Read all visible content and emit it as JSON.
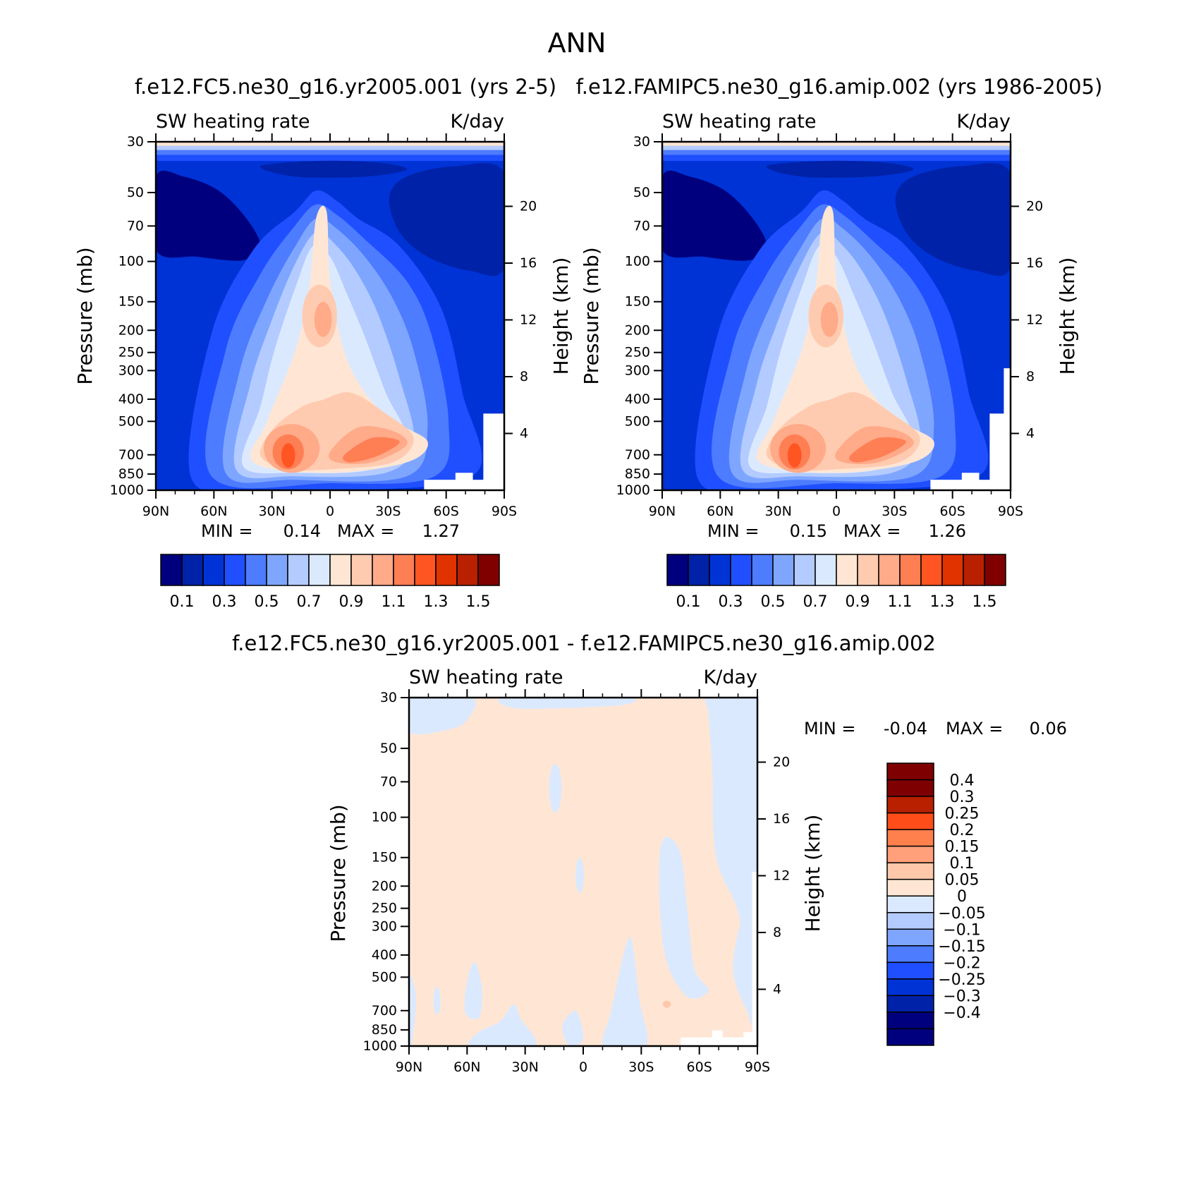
{
  "figure": {
    "title": "ANN"
  },
  "chart_data": [
    {
      "type": "contour",
      "title": "f.e12.FC5.ne30_g16.yr2005.001 (yrs 2-5)",
      "left_subtitle": "SW heating rate",
      "right_subtitle": "K/day",
      "xlabel": "",
      "ylabel": "Pressure (mb)",
      "ylabel_right": "Height (km)",
      "x_ticks": [
        "90N",
        "60N",
        "30N",
        "0",
        "30S",
        "60S",
        "90S"
      ],
      "y_ticks": [
        "30",
        "50",
        "70",
        "100",
        "150",
        "200",
        "250",
        "300",
        "400",
        "500",
        "700",
        "850",
        "1000"
      ],
      "y_ticks_right": [
        "20",
        "16",
        "12",
        "8",
        "4"
      ],
      "xlim": [
        -90,
        90
      ],
      "ylim": [
        1000,
        30
      ],
      "min_label": "MIN =",
      "min_value": "0.14",
      "max_label": "MAX =",
      "max_value": "1.27",
      "colorbar_labels": [
        "0.1",
        "0.3",
        "0.5",
        "0.7",
        "0.9",
        "1.1",
        "1.3",
        "1.5"
      ]
    },
    {
      "type": "contour",
      "title": "f.e12.FAMIPC5.ne30_g16.amip.002 (yrs 1986-2005)",
      "left_subtitle": "SW heating rate",
      "right_subtitle": "K/day",
      "xlabel": "",
      "ylabel": "Pressure (mb)",
      "ylabel_right": "Height (km)",
      "x_ticks": [
        "90N",
        "60N",
        "30N",
        "0",
        "30S",
        "60S",
        "90S"
      ],
      "y_ticks": [
        "30",
        "50",
        "70",
        "100",
        "150",
        "200",
        "250",
        "300",
        "400",
        "500",
        "700",
        "850",
        "1000"
      ],
      "y_ticks_right": [
        "20",
        "16",
        "12",
        "8",
        "4"
      ],
      "xlim": [
        -90,
        90
      ],
      "ylim": [
        1000,
        30
      ],
      "min_label": "MIN =",
      "min_value": "0.15",
      "max_label": "MAX =",
      "max_value": "1.26",
      "colorbar_labels": [
        "0.1",
        "0.3",
        "0.5",
        "0.7",
        "0.9",
        "1.1",
        "1.3",
        "1.5"
      ]
    },
    {
      "type": "contour",
      "title": "f.e12.FC5.ne30_g16.yr2005.001 - f.e12.FAMIPC5.ne30_g16.amip.002",
      "left_subtitle": "SW heating rate",
      "right_subtitle": "K/day",
      "xlabel": "",
      "ylabel": "Pressure (mb)",
      "ylabel_right": "Height (km)",
      "x_ticks": [
        "90N",
        "60N",
        "30N",
        "0",
        "30S",
        "60S",
        "90S"
      ],
      "y_ticks": [
        "30",
        "50",
        "70",
        "100",
        "150",
        "200",
        "250",
        "300",
        "400",
        "500",
        "700",
        "850",
        "1000"
      ],
      "y_ticks_right": [
        "20",
        "16",
        "12",
        "8",
        "4"
      ],
      "xlim": [
        -90,
        90
      ],
      "ylim": [
        1000,
        30
      ],
      "min_label": "MIN =",
      "min_value": "-0.04",
      "max_label": "MAX =",
      "max_value": "0.06",
      "colorbar_labels": [
        "0.4",
        "0.3",
        "0.25",
        "0.2",
        "0.15",
        "0.1",
        "0.05",
        "0",
        "-0.05",
        "-0.1",
        "-0.15",
        "-0.2",
        "-0.25",
        "-0.3",
        "-0.4"
      ]
    }
  ],
  "colors": {
    "abs_scale": [
      "#00007f",
      "#0022a8",
      "#0033d6",
      "#1f4fff",
      "#4d7cff",
      "#7fa6ff",
      "#b3cbff",
      "#dbe9ff",
      "#ffe6d4",
      "#ffcbb0",
      "#ffaa88",
      "#ff7f55",
      "#ff5522",
      "#e03300",
      "#b82000",
      "#800000"
    ],
    "diff_scale": [
      "#7f0000",
      "#b82000",
      "#ff4d1a",
      "#ff7f4d",
      "#ffa07a",
      "#ffc8aa",
      "#ffe6d4",
      "#dbe9ff",
      "#b3cbff",
      "#7fa6ff",
      "#4d7cff",
      "#1f4fff",
      "#0033d6",
      "#0022a8",
      "#00007f"
    ]
  }
}
